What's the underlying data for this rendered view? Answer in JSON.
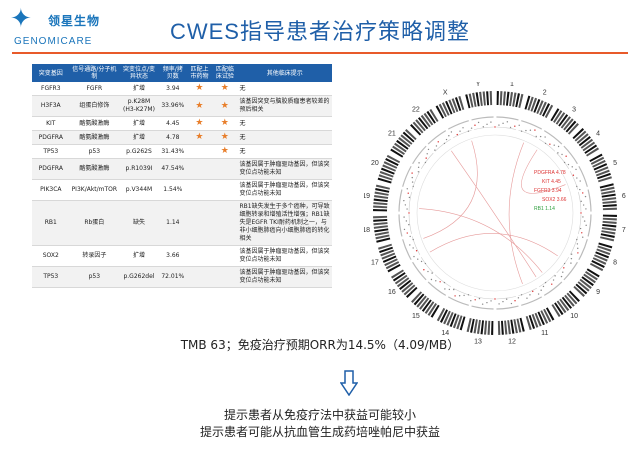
{
  "logo": {
    "cn": "领星生物",
    "en": "GENOMICARE"
  },
  "title": "CWES指导患者治疗策略调整",
  "table": {
    "headers": [
      "突变基因",
      "信号通路/分子机制",
      "突变位点/变异状态",
      "频率/拷贝数",
      "匹配上市药物",
      "匹配临床试验",
      "其他临床提示"
    ],
    "rows": [
      {
        "gene": "FGFR3",
        "path": "FGFR",
        "site": "扩增",
        "freq": "3.94",
        "drug": true,
        "trial": true,
        "note": "无"
      },
      {
        "gene": "H3F3A",
        "path": "组蛋白修饰",
        "site": "p.K28M (H3-K27M)",
        "freq": "33.96%",
        "drug": true,
        "trial": true,
        "note": "该基因突变与脑胶质瘤患者较差的预后相关"
      },
      {
        "gene": "KIT",
        "path": "酪氨酸激酶",
        "site": "扩增",
        "freq": "4.45",
        "drug": true,
        "trial": true,
        "note": "无"
      },
      {
        "gene": "PDGFRA",
        "path": "酪氨酸激酶",
        "site": "扩增",
        "freq": "4.78",
        "drug": true,
        "trial": true,
        "note": "无"
      },
      {
        "gene": "TP53",
        "path": "p53",
        "site": "p.G262S",
        "freq": "31.43%",
        "drug": false,
        "trial": true,
        "note": "无"
      },
      {
        "gene": "PDGFRA",
        "path": "酪氨酸激酶",
        "site": "p.R1039I",
        "freq": "47.54%",
        "drug": false,
        "trial": false,
        "note": "该基因属于肿瘤驱动基因，但该突变位点功能未知"
      },
      {
        "gene": "PIK3CA",
        "path": "PI3K/Akt/mTOR",
        "site": "p.V344M",
        "freq": "1.54%",
        "drug": false,
        "trial": false,
        "note": "该基因属于肿瘤驱动基因，但该突变位点功能未知"
      },
      {
        "gene": "RB1",
        "path": "Rb蛋白",
        "site": "缺失",
        "freq": "1.14",
        "drug": false,
        "trial": false,
        "note": "RB1缺失发生于多个癌种，可导致细胞转录和增殖活性增强；RB1缺失是EGFR TKI耐药机制之一，与非小细胞肺癌向小细胞肺癌的转化相关"
      },
      {
        "gene": "SOX2",
        "path": "转录因子",
        "site": "扩增",
        "freq": "3.66",
        "drug": false,
        "trial": false,
        "note": "该基因属于肿瘤驱动基因，但该突变位点功能未知"
      },
      {
        "gene": "TP53",
        "path": "p53",
        "site": "p.G262del",
        "freq": "72.01%",
        "drug": false,
        "trial": false,
        "note": "该基因属于肿瘤驱动基因，但该突变位点功能未知"
      }
    ]
  },
  "circos": {
    "chromosomes": [
      "1",
      "2",
      "3",
      "4",
      "5",
      "6",
      "7",
      "8",
      "9",
      "10",
      "11",
      "12",
      "13",
      "14",
      "15",
      "16",
      "17",
      "18",
      "19",
      "20",
      "21",
      "22",
      "X",
      "Y"
    ],
    "labels": [
      "PDGFRA 4.78",
      "KIT 4.45",
      "FGFR3 3.94",
      "SOX2 3.66",
      "RB1 1.14"
    ]
  },
  "tmb_text": "TMB 63；免疫治疗预期ORR为14.5%（4.09/MB）",
  "conclusion_1": "提示患者从免疫疗法中获益可能较小",
  "conclusion_2": "提示患者可能从抗血管生成药培唑帕尼中获益",
  "colors": {
    "accent": "#1f5fa8",
    "line": "#e85a2a",
    "star": "#e87e2a"
  }
}
